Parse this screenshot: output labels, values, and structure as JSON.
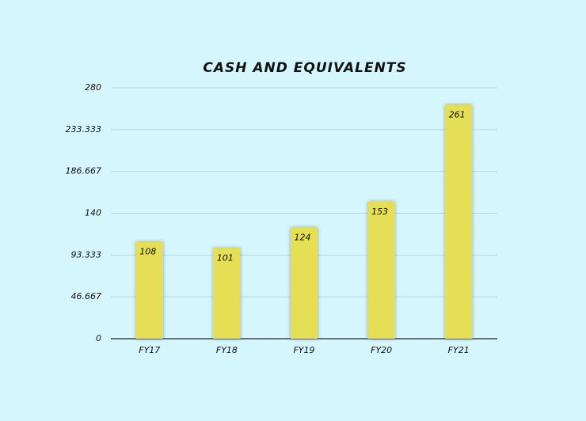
{
  "chart_data": {
    "type": "bar",
    "title": "CASH AND EQUIVALENTS",
    "categories": [
      "FY17",
      "FY18",
      "FY19",
      "FY20",
      "FY21"
    ],
    "values": [
      108,
      101,
      124,
      153,
      261
    ],
    "color": "#e6df55",
    "ylim": [
      0,
      280
    ],
    "yticks": [
      0,
      46.667,
      93.333,
      140,
      186.667,
      233.333,
      280
    ],
    "grid": true
  }
}
